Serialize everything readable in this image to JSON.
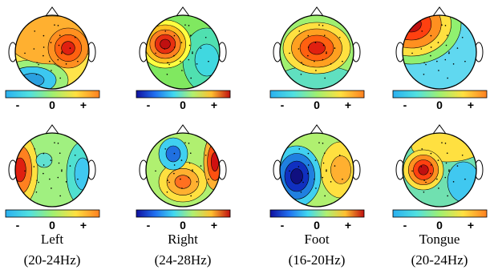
{
  "panels": [
    {
      "label": "Left",
      "band": "(20-24Hz)",
      "scales": [
        [
          "-",
          "0",
          "+"
        ],
        [
          "-",
          "0",
          "+"
        ]
      ]
    },
    {
      "label": "Right",
      "band": "(24-28Hz)",
      "scales": [
        [
          "-",
          "0",
          "+"
        ],
        [
          "-",
          "0",
          "+"
        ]
      ]
    },
    {
      "label": "Foot",
      "band": "(16-20Hz)",
      "scales": [
        [
          "-",
          "0",
          "+"
        ],
        [
          "-",
          "0",
          "+"
        ]
      ]
    },
    {
      "label": "Tongue",
      "band": "(20-24Hz)",
      "scales": [
        [
          "-",
          "0",
          "+"
        ],
        [
          "-",
          "0",
          "+"
        ]
      ]
    }
  ]
}
